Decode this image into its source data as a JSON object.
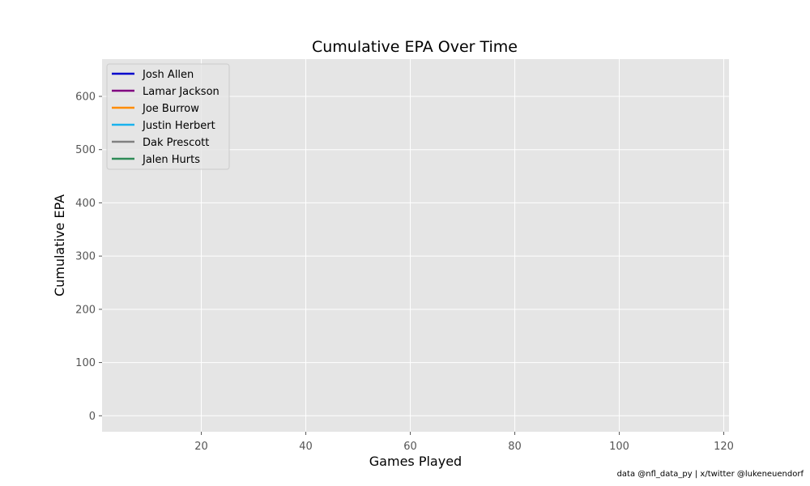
{
  "chart_data": {
    "type": "line",
    "title": "Cumulative EPA Over Time",
    "xlabel": "Games Played",
    "ylabel": "Cumulative EPA",
    "xlim": [
      1,
      121
    ],
    "ylim": [
      -30,
      670
    ],
    "xticks": [
      20,
      40,
      60,
      80,
      100,
      120
    ],
    "yticks": [
      0,
      100,
      200,
      300,
      400,
      500,
      600
    ],
    "grid": true,
    "legend_position": "top-left",
    "background_color": "#e5e5e5",
    "series": [
      {
        "name": "Josh Allen",
        "color": "#0000cc",
        "x": [],
        "y": []
      },
      {
        "name": "Lamar Jackson",
        "color": "#800080",
        "x": [],
        "y": []
      },
      {
        "name": "Joe Burrow",
        "color": "#ff8c00",
        "x": [],
        "y": []
      },
      {
        "name": "Justin Herbert",
        "color": "#1ab2ee",
        "x": [],
        "y": []
      },
      {
        "name": "Dak Prescott",
        "color": "#808080",
        "x": [],
        "y": []
      },
      {
        "name": "Jalen Hurts",
        "color": "#2e8b57",
        "x": [],
        "y": []
      }
    ]
  },
  "footnote": "data @nfl_data_py | x/twitter @lukeneuendorf"
}
